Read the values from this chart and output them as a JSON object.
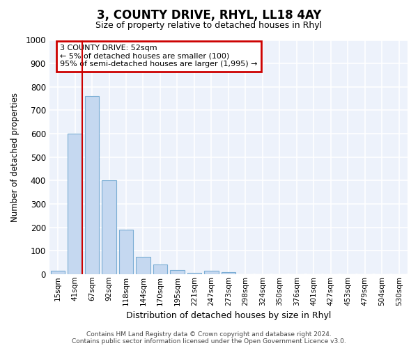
{
  "title": "3, COUNTY DRIVE, RHYL, LL18 4AY",
  "subtitle": "Size of property relative to detached houses in Rhyl",
  "xlabel": "Distribution of detached houses by size in Rhyl",
  "ylabel": "Number of detached properties",
  "bar_labels": [
    "15sqm",
    "41sqm",
    "67sqm",
    "92sqm",
    "118sqm",
    "144sqm",
    "170sqm",
    "195sqm",
    "221sqm",
    "247sqm",
    "273sqm",
    "298sqm",
    "324sqm",
    "350sqm",
    "376sqm",
    "401sqm",
    "427sqm",
    "453sqm",
    "479sqm",
    "504sqm",
    "530sqm"
  ],
  "bar_values": [
    15,
    600,
    760,
    400,
    190,
    75,
    40,
    18,
    5,
    13,
    8,
    0,
    0,
    0,
    0,
    0,
    0,
    0,
    0,
    0,
    0
  ],
  "bar_color": "#c5d8f0",
  "bar_edge_color": "#7aadd4",
  "ylim": [
    0,
    1000
  ],
  "yticks": [
    0,
    100,
    200,
    300,
    400,
    500,
    600,
    700,
    800,
    900,
    1000
  ],
  "vline_x": 1.42,
  "vline_color": "#cc0000",
  "annotation_text": "3 COUNTY DRIVE: 52sqm\n← 5% of detached houses are smaller (100)\n95% of semi-detached houses are larger (1,995) →",
  "annotation_box_color": "#ffffff",
  "annotation_border_color": "#cc0000",
  "footer_text": "Contains HM Land Registry data © Crown copyright and database right 2024.\nContains public sector information licensed under the Open Government Licence v3.0.",
  "bg_color": "#ffffff",
  "plot_bg_color": "#edf2fb",
  "grid_color": "#ffffff"
}
